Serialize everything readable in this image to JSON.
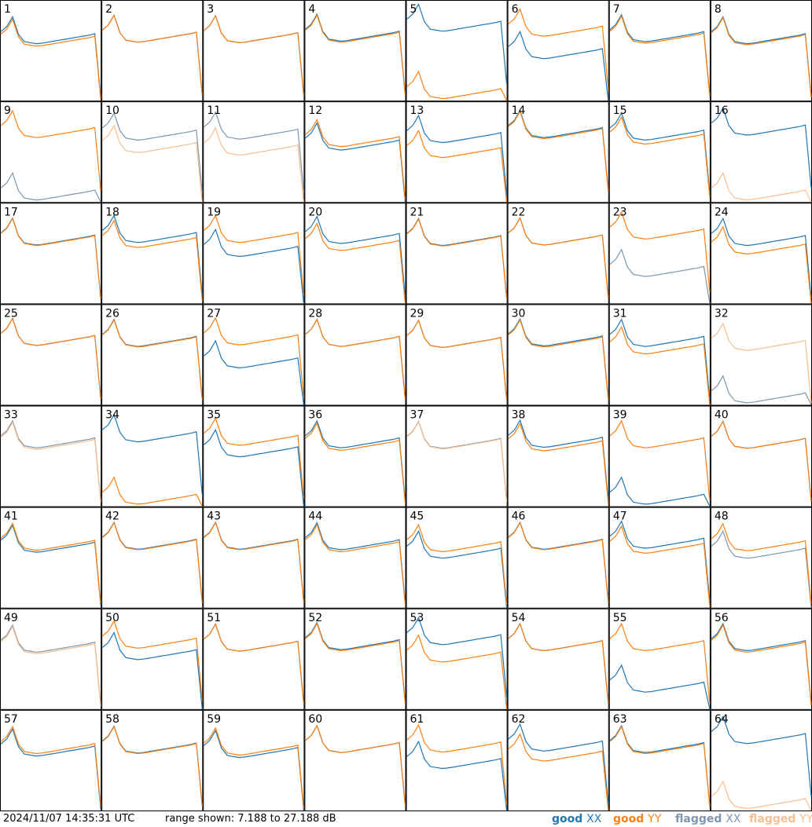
{
  "timestamp": "2024/11/07 14:35:31 UTC",
  "range_label": "range shown: 7.188 to 27.188 dB",
  "legend": [
    {
      "word": "good",
      "pol": "XX",
      "color": "#1f77b4"
    },
    {
      "word": "good",
      "pol": "YY",
      "color": "#ff7f0e"
    },
    {
      "word": "flagged",
      "pol": "XX",
      "color": "#7f96b0"
    },
    {
      "word": "flagged",
      "pol": "YY",
      "color": "#f7be8f"
    }
  ],
  "colors": {
    "good_xx": "#1f77b4",
    "good_yy": "#ff7f0e",
    "flagged_xx": "#7f96b0",
    "flagged_yy": "#f7be8f",
    "border": "#000000"
  },
  "chart_data": {
    "type": "line",
    "title": "",
    "xlabel": "",
    "ylabel": "",
    "ylim": [
      7.188,
      27.188
    ],
    "grid": false,
    "layout": "8x8 small multiples, numbered 1-64",
    "x_points": 18,
    "base_shape": [
      21,
      22,
      24,
      20.5,
      19,
      18.8,
      18.6,
      18.7,
      18.9,
      19.1,
      19.3,
      19.5,
      19.7,
      19.9,
      20.1,
      20.3,
      20.6,
      8
    ],
    "panels": [
      {
        "id": "1",
        "xx": {
          "offset": 0,
          "status": "good"
        },
        "yy": {
          "offset": -0.5,
          "status": "good"
        }
      },
      {
        "id": "2",
        "xx": {
          "offset": 0.3,
          "status": "good"
        },
        "yy": {
          "offset": 0.3,
          "status": "good"
        }
      },
      {
        "id": "3",
        "xx": {
          "offset": 0.2,
          "status": "good"
        },
        "yy": {
          "offset": 0.2,
          "status": "good"
        }
      },
      {
        "id": "4",
        "xx": {
          "offset": 0.5,
          "status": "good"
        },
        "yy": {
          "offset": 0.3,
          "status": "good"
        }
      },
      {
        "id": "5",
        "xx": {
          "offset": 2.5,
          "status": "good"
        },
        "yy": {
          "offset": -11,
          "status": "good"
        }
      },
      {
        "id": "6",
        "xx": {
          "offset": -3,
          "status": "good"
        },
        "yy": {
          "offset": 1.5,
          "status": "good"
        }
      },
      {
        "id": "7",
        "xx": {
          "offset": 0.4,
          "status": "good"
        },
        "yy": {
          "offset": 0.1,
          "status": "good"
        }
      },
      {
        "id": "8",
        "xx": {
          "offset": 0,
          "status": "good"
        },
        "yy": {
          "offset": -0.2,
          "status": "good"
        }
      },
      {
        "id": "9",
        "xx": {
          "offset": -11,
          "status": "flagged"
        },
        "yy": {
          "offset": 1.5,
          "status": "good"
        }
      },
      {
        "id": "10",
        "xx": {
          "offset": 1,
          "status": "flagged"
        },
        "yy": {
          "offset": -1.5,
          "status": "flagged"
        }
      },
      {
        "id": "11",
        "xx": {
          "offset": 1.2,
          "status": "flagged"
        },
        "yy": {
          "offset": -2,
          "status": "flagged"
        }
      },
      {
        "id": "12",
        "xx": {
          "offset": -1,
          "status": "good"
        },
        "yy": {
          "offset": -0.3,
          "status": "good"
        }
      },
      {
        "id": "13",
        "xx": {
          "offset": 0.5,
          "status": "good"
        },
        "yy": {
          "offset": -2.5,
          "status": "good"
        }
      },
      {
        "id": "14",
        "xx": {
          "offset": 1.5,
          "status": "good"
        },
        "yy": {
          "offset": 1.3,
          "status": "good"
        }
      },
      {
        "id": "15",
        "xx": {
          "offset": 1,
          "status": "good"
        },
        "yy": {
          "offset": 0.2,
          "status": "good"
        }
      },
      {
        "id": "16",
        "xx": {
          "offset": 2,
          "status": "good"
        },
        "yy": {
          "offset": -11,
          "status": "flagged"
        }
      },
      {
        "id": "17",
        "xx": {
          "offset": 0.3,
          "status": "good"
        },
        "yy": {
          "offset": 0.2,
          "status": "good"
        }
      },
      {
        "id": "18",
        "xx": {
          "offset": 0.8,
          "status": "good"
        },
        "yy": {
          "offset": -0.2,
          "status": "good"
        }
      },
      {
        "id": "19",
        "xx": {
          "offset": -2,
          "status": "good"
        },
        "yy": {
          "offset": 0.8,
          "status": "good"
        }
      },
      {
        "id": "20",
        "xx": {
          "offset": 0.6,
          "status": "good"
        },
        "yy": {
          "offset": -0.8,
          "status": "good"
        }
      },
      {
        "id": "21",
        "xx": {
          "offset": 0.2,
          "status": "good"
        },
        "yy": {
          "offset": 0.1,
          "status": "good"
        }
      },
      {
        "id": "22",
        "xx": {
          "offset": 0.3,
          "status": "good"
        },
        "yy": {
          "offset": 0.3,
          "status": "good"
        }
      },
      {
        "id": "23",
        "xx": {
          "offset": -6,
          "status": "flagged"
        },
        "yy": {
          "offset": 1.5,
          "status": "good"
        }
      },
      {
        "id": "24",
        "xx": {
          "offset": 0.2,
          "status": "good"
        },
        "yy": {
          "offset": -1.5,
          "status": "good"
        }
      },
      {
        "id": "25",
        "xx": {
          "offset": 0.5,
          "status": "good"
        },
        "yy": {
          "offset": 0.5,
          "status": "good"
        }
      },
      {
        "id": "26",
        "xx": {
          "offset": 0.3,
          "status": "good"
        },
        "yy": {
          "offset": 0.2,
          "status": "good"
        }
      },
      {
        "id": "27",
        "xx": {
          "offset": -4,
          "status": "good"
        },
        "yy": {
          "offset": 0.6,
          "status": "good"
        }
      },
      {
        "id": "28",
        "xx": {
          "offset": 0.3,
          "status": "good"
        },
        "yy": {
          "offset": 0.3,
          "status": "good"
        }
      },
      {
        "id": "29",
        "xx": {
          "offset": 0.1,
          "status": "good"
        },
        "yy": {
          "offset": 0.1,
          "status": "good"
        }
      },
      {
        "id": "30",
        "xx": {
          "offset": 0.4,
          "status": "good"
        },
        "yy": {
          "offset": 0.2,
          "status": "good"
        }
      },
      {
        "id": "31",
        "xx": {
          "offset": 0.3,
          "status": "good"
        },
        "yy": {
          "offset": -1.2,
          "status": "good"
        }
      },
      {
        "id": "32",
        "xx": {
          "offset": -11,
          "status": "flagged"
        },
        "yy": {
          "offset": -0.5,
          "status": "flagged"
        }
      },
      {
        "id": "33",
        "xx": {
          "offset": 0.3,
          "status": "flagged"
        },
        "yy": {
          "offset": 0,
          "status": "flagged"
        }
      },
      {
        "id": "34",
        "xx": {
          "offset": 1.5,
          "status": "good"
        },
        "yy": {
          "offset": -11,
          "status": "good"
        }
      },
      {
        "id": "35",
        "xx": {
          "offset": -1.5,
          "status": "good"
        },
        "yy": {
          "offset": 0.8,
          "status": "good"
        }
      },
      {
        "id": "36",
        "xx": {
          "offset": 0.3,
          "status": "good"
        },
        "yy": {
          "offset": -0.2,
          "status": "good"
        }
      },
      {
        "id": "37",
        "xx": {
          "offset": 0.2,
          "status": "flagged"
        },
        "yy": {
          "offset": 0.1,
          "status": "flagged"
        }
      },
      {
        "id": "38",
        "xx": {
          "offset": 0.4,
          "status": "good"
        },
        "yy": {
          "offset": -0.3,
          "status": "good"
        }
      },
      {
        "id": "39",
        "xx": {
          "offset": -11,
          "status": "good"
        },
        "yy": {
          "offset": 0.3,
          "status": "good"
        }
      },
      {
        "id": "40",
        "xx": {
          "offset": 0.2,
          "status": "good"
        },
        "yy": {
          "offset": 0.2,
          "status": "good"
        }
      },
      {
        "id": "41",
        "xx": {
          "offset": -0.3,
          "status": "good"
        },
        "yy": {
          "offset": 0.1,
          "status": "good"
        }
      },
      {
        "id": "42",
        "xx": {
          "offset": 0.3,
          "status": "good"
        },
        "yy": {
          "offset": 0.2,
          "status": "good"
        }
      },
      {
        "id": "43",
        "xx": {
          "offset": 0.3,
          "status": "good"
        },
        "yy": {
          "offset": 0.2,
          "status": "good"
        }
      },
      {
        "id": "44",
        "xx": {
          "offset": 0.2,
          "status": "good"
        },
        "yy": {
          "offset": -0.2,
          "status": "good"
        }
      },
      {
        "id": "45",
        "xx": {
          "offset": -1.5,
          "status": "good"
        },
        "yy": {
          "offset": -0.2,
          "status": "good"
        }
      },
      {
        "id": "46",
        "xx": {
          "offset": 0.3,
          "status": "good"
        },
        "yy": {
          "offset": 0.2,
          "status": "good"
        }
      },
      {
        "id": "47",
        "xx": {
          "offset": 0.5,
          "status": "good"
        },
        "yy": {
          "offset": -0.5,
          "status": "good"
        }
      },
      {
        "id": "48",
        "xx": {
          "offset": -1.5,
          "status": "flagged"
        },
        "yy": {
          "offset": 0,
          "status": "good"
        }
      },
      {
        "id": "49",
        "xx": {
          "offset": 0,
          "status": "flagged"
        },
        "yy": {
          "offset": -0.3,
          "status": "flagged"
        }
      },
      {
        "id": "50",
        "xx": {
          "offset": -1.5,
          "status": "good"
        },
        "yy": {
          "offset": 0.8,
          "status": "good"
        }
      },
      {
        "id": "51",
        "xx": {
          "offset": 0.2,
          "status": "good"
        },
        "yy": {
          "offset": 0.2,
          "status": "good"
        }
      },
      {
        "id": "52",
        "xx": {
          "offset": 0.5,
          "status": "good"
        },
        "yy": {
          "offset": 0.3,
          "status": "good"
        }
      },
      {
        "id": "53",
        "xx": {
          "offset": 1.5,
          "status": "good"
        },
        "yy": {
          "offset": -2,
          "status": "good"
        }
      },
      {
        "id": "54",
        "xx": {
          "offset": 0.3,
          "status": "good"
        },
        "yy": {
          "offset": 0.3,
          "status": "good"
        }
      },
      {
        "id": "55",
        "xx": {
          "offset": -8,
          "status": "good"
        },
        "yy": {
          "offset": 0.3,
          "status": "good"
        }
      },
      {
        "id": "56",
        "xx": {
          "offset": 0.3,
          "status": "good"
        },
        "yy": {
          "offset": 0,
          "status": "good"
        }
      },
      {
        "id": "57",
        "xx": {
          "offset": -0.5,
          "status": "good"
        },
        "yy": {
          "offset": 0,
          "status": "good"
        }
      },
      {
        "id": "58",
        "xx": {
          "offset": 0.1,
          "status": "good"
        },
        "yy": {
          "offset": 0,
          "status": "good"
        }
      },
      {
        "id": "59",
        "xx": {
          "offset": -0.8,
          "status": "good"
        },
        "yy": {
          "offset": -0.3,
          "status": "good"
        }
      },
      {
        "id": "60",
        "xx": {
          "offset": 0.2,
          "status": "good"
        },
        "yy": {
          "offset": 0.2,
          "status": "good"
        }
      },
      {
        "id": "61",
        "xx": {
          "offset": -3,
          "status": "good"
        },
        "yy": {
          "offset": 0.3,
          "status": "good"
        }
      },
      {
        "id": "62",
        "xx": {
          "offset": 0.5,
          "status": "good"
        },
        "yy": {
          "offset": -1.5,
          "status": "good"
        }
      },
      {
        "id": "63",
        "xx": {
          "offset": 0.2,
          "status": "good"
        },
        "yy": {
          "offset": 0,
          "status": "good"
        }
      },
      {
        "id": "64",
        "xx": {
          "offset": 2,
          "status": "good"
        },
        "yy": {
          "offset": -11,
          "status": "flagged"
        }
      }
    ]
  }
}
